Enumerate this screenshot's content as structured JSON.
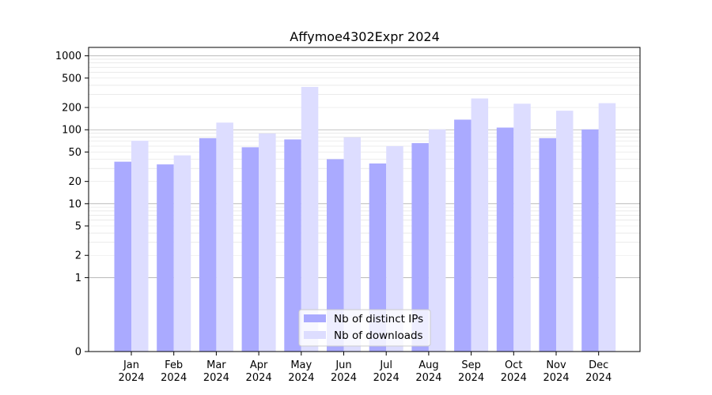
{
  "chart_data": {
    "type": "bar",
    "title": "Affymoe4302Expr 2024",
    "xlabel": "",
    "ylabel": "",
    "categories": [
      [
        "Jan",
        "2024"
      ],
      [
        "Feb",
        "2024"
      ],
      [
        "Mar",
        "2024"
      ],
      [
        "Apr",
        "2024"
      ],
      [
        "May",
        "2024"
      ],
      [
        "Jun",
        "2024"
      ],
      [
        "Jul",
        "2024"
      ],
      [
        "Aug",
        "2024"
      ],
      [
        "Sep",
        "2024"
      ],
      [
        "Oct",
        "2024"
      ],
      [
        "Nov",
        "2024"
      ],
      [
        "Dec",
        "2024"
      ]
    ],
    "series": [
      {
        "name": "Nb of distinct IPs",
        "color": "#aaaaff",
        "values": [
          37,
          34,
          77,
          58,
          74,
          40,
          35,
          66,
          137,
          107,
          77,
          101
        ]
      },
      {
        "name": "Nb of downloads",
        "color": "#ddddff",
        "values": [
          71,
          45,
          125,
          89,
          380,
          79,
          60,
          101,
          265,
          225,
          181,
          229
        ]
      }
    ],
    "yscale": "symlog",
    "yticks": [
      0,
      1,
      2,
      5,
      10,
      20,
      50,
      100,
      200,
      500,
      1000
    ],
    "ylim": [
      0,
      1300
    ],
    "grid": true,
    "legend_position": "bottom-center"
  }
}
